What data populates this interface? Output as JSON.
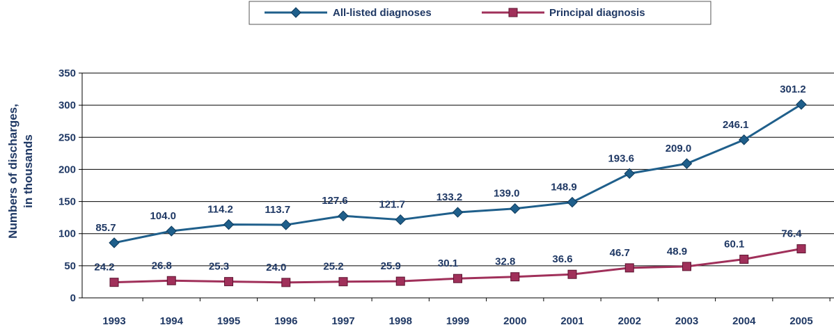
{
  "chart_data": {
    "type": "line",
    "x": [
      "1993",
      "1994",
      "1995",
      "1996",
      "1997",
      "1998",
      "1999",
      "2000",
      "2001",
      "2002",
      "2003",
      "2004",
      "2005"
    ],
    "series": [
      {
        "name": "All-listed diagnoses",
        "color": "#1f5f8b",
        "marker": "diamond",
        "values": [
          85.7,
          104.0,
          114.2,
          113.7,
          127.6,
          121.7,
          133.2,
          139.0,
          148.9,
          193.6,
          209.0,
          246.1,
          301.2
        ],
        "labels": [
          "85.7",
          "104.0",
          "114.2",
          "113.7",
          "127.6",
          "121.7",
          "133.2",
          "139.0",
          "148.9",
          "193.6",
          "209.0",
          "246.1",
          "301.2"
        ]
      },
      {
        "name": "Principal diagnosis",
        "color": "#a0305a",
        "marker": "square",
        "values": [
          24.2,
          26.8,
          25.3,
          24.0,
          25.2,
          25.9,
          30.1,
          32.8,
          36.6,
          46.7,
          48.9,
          60.1,
          76.4
        ],
        "labels": [
          "24.2",
          "26.8",
          "25.3",
          "24.0",
          "25.2",
          "25.9",
          "30.1",
          "32.8",
          "36.6",
          "46.7",
          "48.9",
          "60.1",
          "76.4"
        ]
      }
    ],
    "ylabel_line1": "Numbers of discharges,",
    "ylabel_line2": "in thousands",
    "ylim": [
      0,
      350
    ],
    "yticks": [
      "0",
      "50",
      "100",
      "150",
      "200",
      "250",
      "300",
      "350"
    ],
    "grid": true,
    "legend_position": "top-center"
  }
}
